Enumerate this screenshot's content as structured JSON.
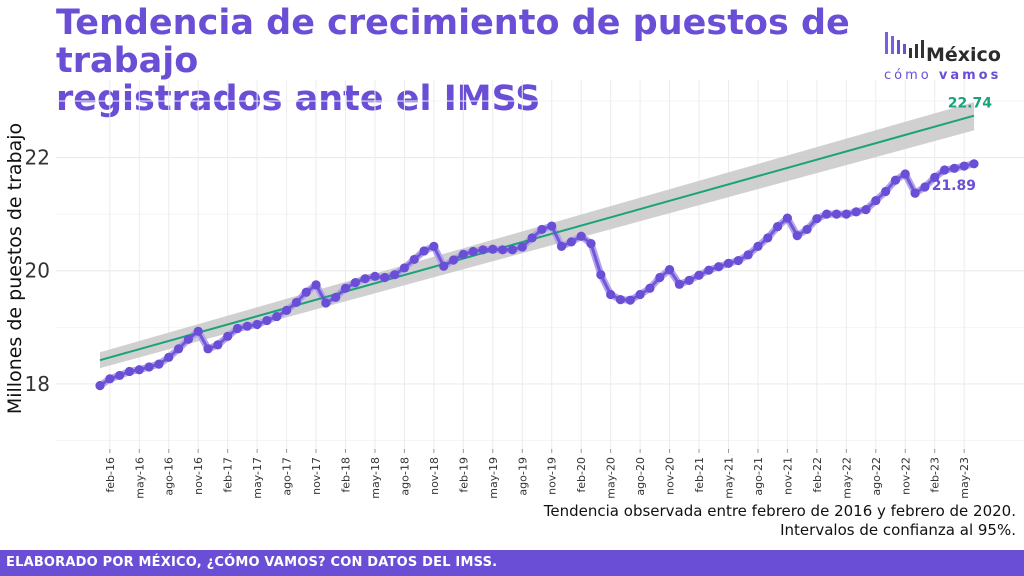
{
  "header": {
    "title_line1": "Tendencia de crecimiento de puestos de trabajo",
    "title_line2": "registrados ante el IMSS"
  },
  "logo": {
    "name": "México",
    "sub_light": "cómo",
    "sub_bold": "vamos"
  },
  "note": {
    "line1": "Tendencia observada entre febrero de 2016 y febrero de 2020.",
    "line2": "Intervalos de confianza al 95%."
  },
  "footer": {
    "text": "ELABORADO POR MÉXICO, ¿CÓMO VAMOS? CON DATOS DEL IMSS."
  },
  "colors": {
    "accent": "#6a4fd6",
    "series": "#6a4fd6",
    "series_faded": "#b3a4ea",
    "trend": "#1aa37a",
    "band": "#c8c8c8",
    "grid": "#ececec"
  },
  "chart_data": {
    "type": "line",
    "ylabel": "Millones de puestos de trabajo",
    "xlabel": "",
    "ylim": [
      16.85,
      23.3
    ],
    "y_ticks": [
      18,
      20,
      22
    ],
    "grid": true,
    "x_tick_labels": [
      "feb-16",
      "may-16",
      "ago-16",
      "nov-16",
      "feb-17",
      "may-17",
      "ago-17",
      "nov-17",
      "feb-18",
      "may-18",
      "ago-18",
      "nov-18",
      "feb-19",
      "may-19",
      "ago-19",
      "nov-19",
      "feb-20",
      "may-20",
      "ago-20",
      "nov-20",
      "feb-21",
      "may-21",
      "ago-21",
      "nov-21",
      "feb-22",
      "may-22",
      "ago-22",
      "nov-22",
      "feb-23",
      "may-23"
    ],
    "x_start": "2016-01",
    "series": [
      {
        "name": "",
        "values": [
          17.97,
          18.09,
          18.15,
          18.22,
          18.25,
          18.3,
          18.35,
          18.47,
          18.62,
          18.79,
          18.93,
          18.62,
          18.69,
          18.84,
          18.98,
          19.02,
          19.05,
          19.12,
          19.19,
          19.3,
          19.44,
          19.62,
          19.75,
          19.43,
          19.53,
          19.69,
          19.79,
          19.86,
          19.9,
          19.88,
          19.93,
          20.05,
          20.2,
          20.35,
          20.43,
          20.08,
          20.19,
          20.29,
          20.34,
          20.37,
          20.38,
          20.37,
          20.37,
          20.42,
          20.58,
          20.73,
          20.79,
          20.43,
          20.51,
          20.61,
          20.48,
          19.93,
          19.58,
          19.49,
          19.48,
          19.58,
          19.69,
          19.88,
          20.02,
          19.76,
          19.83,
          19.92,
          20.01,
          20.07,
          20.13,
          20.18,
          20.28,
          20.43,
          20.58,
          20.78,
          20.93,
          20.62,
          20.73,
          20.92,
          21.0,
          21.0,
          21.0,
          21.04,
          21.08,
          21.24,
          21.4,
          21.6,
          21.71,
          21.37,
          21.48,
          21.65,
          21.78,
          21.81,
          21.85,
          21.89
        ]
      }
    ],
    "trend": {
      "start": 18.42,
      "end": 22.74,
      "band_start": [
        18.28,
        18.56
      ],
      "band_end": [
        22.48,
        22.98
      ]
    },
    "labels": {
      "trend_end": "22.74",
      "series_end": "21.89"
    }
  }
}
